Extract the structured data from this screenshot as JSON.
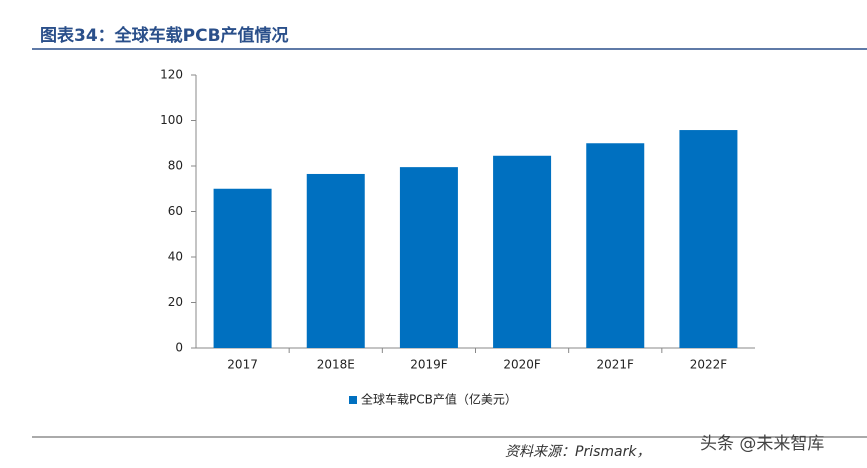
{
  "chart_data": {
    "type": "bar",
    "title": "图表34：全球车载PCB产值情况",
    "categories": [
      "2017",
      "2018E",
      "2019F",
      "2020F",
      "2021F",
      "2022F"
    ],
    "series": [
      {
        "name": "全球车载PCB产值（亿美元）",
        "color": "#0070c0",
        "values": [
          70,
          76.5,
          79.5,
          84.5,
          90,
          95.8
        ]
      }
    ],
    "ylim": [
      0,
      120
    ],
    "yticks": [
      0,
      20,
      40,
      60,
      80,
      100,
      120
    ],
    "source": "资料来源：Prismark，",
    "watermark": "头条 @未来智库"
  }
}
